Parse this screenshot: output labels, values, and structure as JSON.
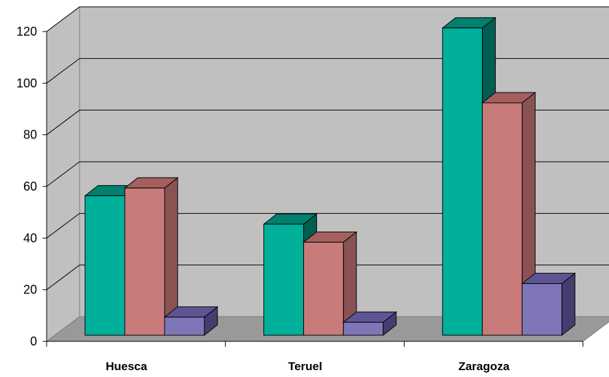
{
  "chart_data": {
    "type": "bar",
    "title": "",
    "xlabel": "",
    "ylabel": "",
    "categories": [
      "Huesca",
      "Teruel",
      "Zaragoza"
    ],
    "series": [
      {
        "values": [
          54,
          43,
          119
        ]
      },
      {
        "values": [
          57,
          36,
          90
        ]
      },
      {
        "values": [
          7,
          5,
          20
        ]
      }
    ],
    "ylim": [
      0,
      120
    ],
    "yticks": [
      "0",
      "20",
      "40",
      "60",
      "80",
      "100",
      "120"
    ],
    "grid": true,
    "legend": "none",
    "style": "3d-clustered-column",
    "colors": {
      "series_front": [
        "#00b09b",
        "#c97b7b",
        "#7f76b8"
      ],
      "series_top": [
        "#00806f",
        "#a65f5f",
        "#5e5694"
      ],
      "series_side": [
        "#005e52",
        "#8a5252",
        "#443e70"
      ],
      "wall": "#c0c0c0",
      "floor": "#999999",
      "gridline": "#000000"
    }
  }
}
